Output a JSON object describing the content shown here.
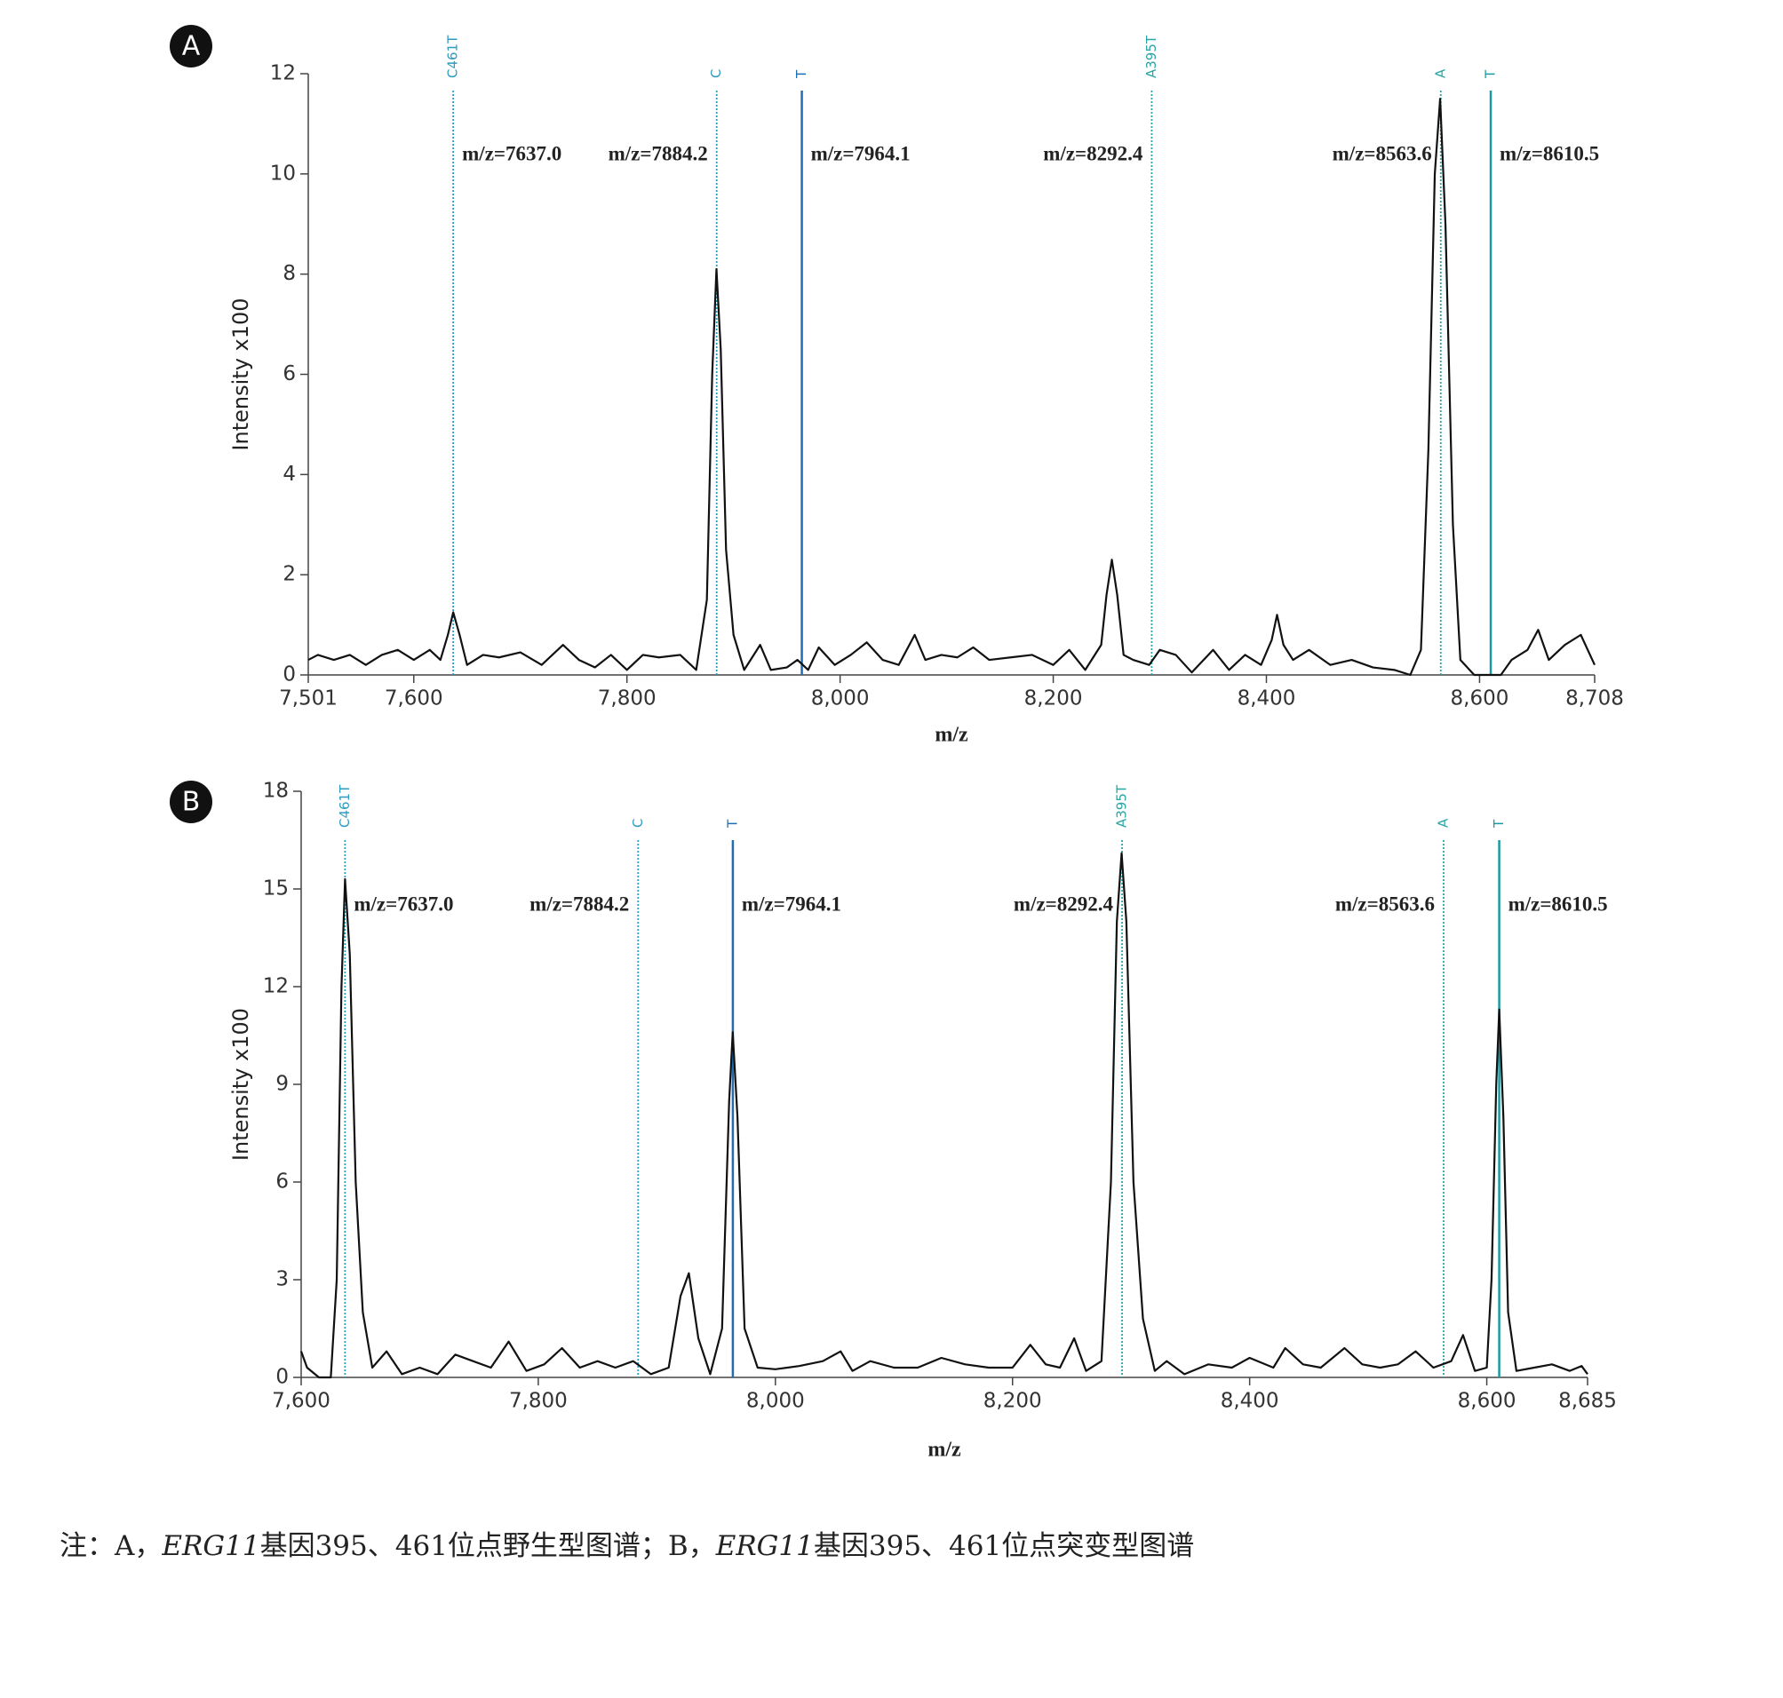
{
  "chart_data": [
    {
      "type": "line",
      "panel_label": "A",
      "x_label": "m/z",
      "y_label": "Intensity x100",
      "xlim": [
        7501,
        8708
      ],
      "xticks": [
        {
          "value": 7501,
          "label": "7,501"
        },
        {
          "value": 7600,
          "label": "7,600"
        },
        {
          "value": 7800,
          "label": "7,800"
        },
        {
          "value": 8000,
          "label": "8,000"
        },
        {
          "value": 8200,
          "label": "8,200"
        },
        {
          "value": 8400,
          "label": "8,400"
        },
        {
          "value": 8600,
          "label": "8,600"
        },
        {
          "value": 8708,
          "label": "8,708"
        }
      ],
      "ylim": [
        0,
        12
      ],
      "yticks": [
        0,
        2,
        4,
        6,
        8,
        10,
        12
      ],
      "color": "#111111",
      "x": [
        7501,
        7510,
        7525,
        7540,
        7555,
        7570,
        7585,
        7600,
        7615,
        7625,
        7632,
        7637,
        7643,
        7650,
        7665,
        7680,
        7700,
        7720,
        7740,
        7755,
        7770,
        7785,
        7800,
        7815,
        7830,
        7850,
        7865,
        7875,
        7880,
        7884,
        7888,
        7893,
        7900,
        7910,
        7925,
        7935,
        7950,
        7960,
        7970,
        7980,
        7995,
        8010,
        8025,
        8040,
        8055,
        8070,
        8080,
        8095,
        8110,
        8125,
        8140,
        8160,
        8180,
        8200,
        8215,
        8230,
        8245,
        8250,
        8255,
        8260,
        8266,
        8275,
        8290,
        8300,
        8315,
        8330,
        8350,
        8365,
        8380,
        8395,
        8405,
        8410,
        8416,
        8425,
        8440,
        8460,
        8480,
        8500,
        8520,
        8535,
        8545,
        8552,
        8558,
        8563,
        8568,
        8575,
        8582,
        8595,
        8620,
        8630,
        8645,
        8655,
        8665,
        8680,
        8695,
        8708
      ],
      "values": [
        0.3,
        0.4,
        0.3,
        0.4,
        0.2,
        0.4,
        0.5,
        0.3,
        0.5,
        0.3,
        0.8,
        1.25,
        0.8,
        0.2,
        0.4,
        0.35,
        0.45,
        0.2,
        0.6,
        0.3,
        0.15,
        0.4,
        0.1,
        0.4,
        0.35,
        0.4,
        0.1,
        1.5,
        6.0,
        8.1,
        6.5,
        2.5,
        0.8,
        0.1,
        0.6,
        0.1,
        0.15,
        0.3,
        0.1,
        0.55,
        0.2,
        0.4,
        0.65,
        0.3,
        0.2,
        0.8,
        0.3,
        0.4,
        0.35,
        0.55,
        0.3,
        0.35,
        0.4,
        0.2,
        0.5,
        0.1,
        0.6,
        1.6,
        2.3,
        1.6,
        0.4,
        0.3,
        0.2,
        0.5,
        0.4,
        0.05,
        0.5,
        0.1,
        0.4,
        0.2,
        0.7,
        1.2,
        0.6,
        0.3,
        0.5,
        0.2,
        0.3,
        0.15,
        0.1,
        0.0,
        0.5,
        4.5,
        10,
        11.5,
        9,
        3,
        0.3,
        0.0,
        0.0,
        0.3,
        0.5,
        0.9,
        0.3,
        0.6,
        0.8,
        0.2
      ],
      "markers": [
        {
          "label": "C461T",
          "x": 7637.0,
          "annotation": "m/z=7637.0",
          "color": "#2e9cc0",
          "style": "dotted"
        },
        {
          "label": "C",
          "x": 7884.2,
          "annotation": "m/z=7884.2",
          "color": "#2e9cc0",
          "style": "dotted"
        },
        {
          "label": "T",
          "x": 7964.1,
          "annotation": "m/z=7964.1",
          "color": "#1f6db3",
          "style": "solid"
        },
        {
          "label": "A395T",
          "x": 8292.4,
          "annotation": "m/z=8292.4",
          "color": "#2aa5a5",
          "style": "dotted"
        },
        {
          "label": "A",
          "x": 8563.6,
          "annotation": "m/z=8563.6",
          "color": "#2aa5a5",
          "style": "dotted"
        },
        {
          "label": "T",
          "x": 8610.5,
          "annotation": "m/z=8610.5",
          "color": "#1a9aa0",
          "style": "solid"
        }
      ]
    },
    {
      "type": "line",
      "panel_label": "B",
      "x_label": "m/z",
      "y_label": "Intensity x100",
      "xlim": [
        7600,
        8685
      ],
      "xticks": [
        {
          "value": 7600,
          "label": "7,600"
        },
        {
          "value": 7800,
          "label": "7,800"
        },
        {
          "value": 8000,
          "label": "8,000"
        },
        {
          "value": 8200,
          "label": "8,200"
        },
        {
          "value": 8400,
          "label": "8,400"
        },
        {
          "value": 8600,
          "label": "8,600"
        },
        {
          "value": 8685,
          "label": "8,685"
        }
      ],
      "ylim": [
        0,
        18
      ],
      "yticks": [
        0,
        3,
        6,
        9,
        12,
        15,
        18
      ],
      "color": "#111111",
      "x": [
        7600,
        7605,
        7615,
        7625,
        7630,
        7634,
        7637,
        7641,
        7646,
        7652,
        7660,
        7672,
        7685,
        7700,
        7715,
        7730,
        7745,
        7760,
        7775,
        7790,
        7805,
        7820,
        7835,
        7850,
        7865,
        7880,
        7895,
        7910,
        7920,
        7927,
        7935,
        7945,
        7955,
        7961,
        7964,
        7968,
        7974,
        7985,
        8000,
        8020,
        8040,
        8055,
        8065,
        8080,
        8100,
        8120,
        8140,
        8160,
        8180,
        8200,
        8215,
        8228,
        8240,
        8252,
        8262,
        8275,
        8283,
        8288,
        8292,
        8296,
        8302,
        8310,
        8320,
        8330,
        8345,
        8365,
        8385,
        8400,
        8420,
        8430,
        8445,
        8460,
        8480,
        8495,
        8510,
        8525,
        8540,
        8555,
        8570,
        8580,
        8590,
        8600,
        8604,
        8608,
        8610.5,
        8614,
        8618,
        8625,
        8640,
        8655,
        8670,
        8680,
        8685
      ],
      "values": [
        0.8,
        0.3,
        0.0,
        0.0,
        3,
        12,
        15.3,
        13,
        6,
        2,
        0.3,
        0.8,
        0.1,
        0.3,
        0.1,
        0.7,
        0.5,
        0.3,
        1.1,
        0.2,
        0.4,
        0.9,
        0.3,
        0.5,
        0.3,
        0.5,
        0.1,
        0.3,
        2.5,
        3.2,
        1.2,
        0.1,
        1.5,
        8.5,
        10.6,
        8,
        1.5,
        0.3,
        0.25,
        0.35,
        0.5,
        0.8,
        0.2,
        0.5,
        0.3,
        0.3,
        0.6,
        0.4,
        0.3,
        0.3,
        1.0,
        0.4,
        0.3,
        1.2,
        0.2,
        0.5,
        6,
        14,
        16.1,
        14,
        6,
        1.8,
        0.2,
        0.5,
        0.1,
        0.4,
        0.3,
        0.6,
        0.3,
        0.9,
        0.4,
        0.3,
        0.9,
        0.4,
        0.3,
        0.4,
        0.8,
        0.3,
        0.5,
        1.3,
        0.2,
        0.3,
        3,
        9,
        11.3,
        8,
        2,
        0.2,
        0.3,
        0.4,
        0.2,
        0.35,
        0.1
      ],
      "markers": [
        {
          "label": "C461T",
          "x": 7637.0,
          "annotation": "m/z=7637.0",
          "color": "#2e9cc0",
          "style": "dotted"
        },
        {
          "label": "C",
          "x": 7884.2,
          "annotation": "m/z=7884.2",
          "color": "#2e9cc0",
          "style": "dotted"
        },
        {
          "label": "T",
          "x": 7964.1,
          "annotation": "m/z=7964.1",
          "color": "#1f6db3",
          "style": "solid"
        },
        {
          "label": "A395T",
          "x": 8292.4,
          "annotation": "m/z=8292.4",
          "color": "#2aa5a5",
          "style": "dotted"
        },
        {
          "label": "A",
          "x": 8563.6,
          "annotation": "m/z=8563.6",
          "color": "#2aa5a5",
          "style": "dotted"
        },
        {
          "label": "T",
          "x": 8610.5,
          "annotation": "m/z=8610.5",
          "color": "#1a9aa0",
          "style": "solid"
        }
      ]
    }
  ],
  "caption": [
    "注：A，",
    "ERG11",
    "基因395、461位点野生型图谱；B，",
    "ERG11",
    "基因395、461位点突变型图谱"
  ]
}
